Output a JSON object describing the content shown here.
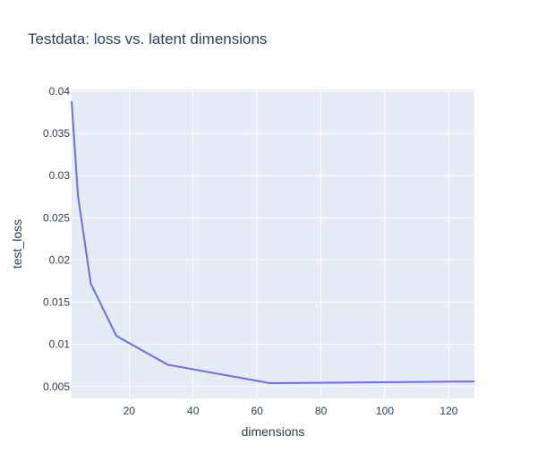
{
  "chart_data": {
    "type": "line",
    "title": "Testdata: loss vs. latent dimensions",
    "xlabel": "dimensions",
    "ylabel": "test_loss",
    "xlim": [
      2,
      128
    ],
    "ylim": [
      0.0036,
      0.0402
    ],
    "xticks": [
      20,
      40,
      60,
      80,
      100,
      120
    ],
    "yticks": [
      0.005,
      0.01,
      0.015,
      0.02,
      0.025,
      0.03,
      0.035,
      0.04
    ],
    "ytick_labels": [
      "0.005",
      "0.01",
      "0.015",
      "0.02",
      "0.025",
      "0.03",
      "0.035",
      "0.04"
    ],
    "grid": true,
    "series": [
      {
        "x": [
          2,
          4,
          8,
          16,
          32,
          64,
          128
        ],
        "y": [
          0.0388,
          0.0276,
          0.0172,
          0.011,
          0.0076,
          0.0054,
          0.0056
        ],
        "color": "#636efa"
      }
    ],
    "colors": {
      "plot_bg": "#e5ecf6",
      "grid": "#ffffff",
      "text": "#2a3f5f"
    }
  }
}
